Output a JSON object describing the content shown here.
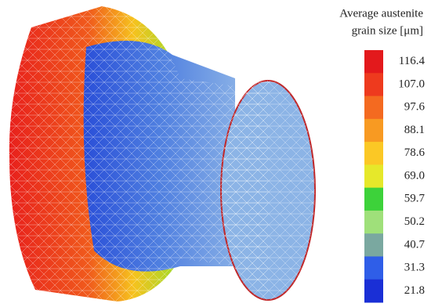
{
  "legend": {
    "title": [
      "Average austenite",
      "grain size [μm]"
    ],
    "labels": [
      "116.4",
      "107.0",
      "97.6",
      "88.1",
      "78.6",
      "69.0",
      "59.7",
      "50.2",
      "40.7",
      "31.3",
      "21.8"
    ]
  }
}
